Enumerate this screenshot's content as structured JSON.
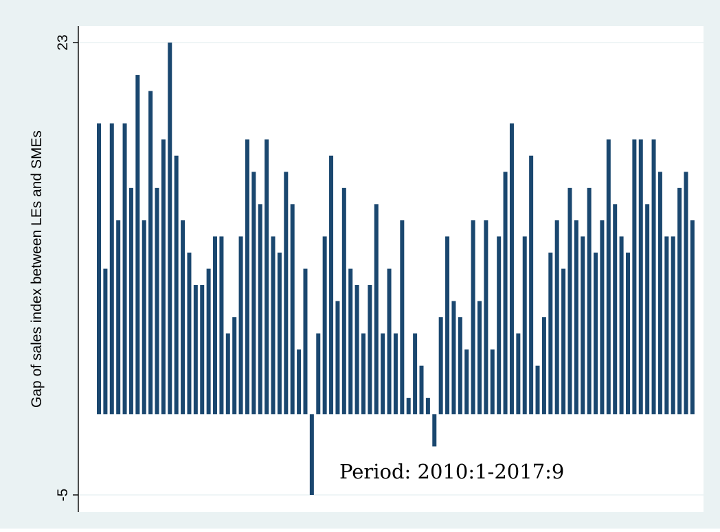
{
  "colors": {
    "outer_background": "#eaf2f3",
    "plot_background": "#ffffff",
    "bar": "#1a476f",
    "axis": "#000000",
    "gridline": "#eaf2f3",
    "text": "#000000"
  },
  "chart_data": {
    "type": "bar",
    "ylabel": "Gap of sales index between LEs and SMEs",
    "xlabel": "",
    "annotation": "Period: 2010:1-2017:9",
    "ylim": [
      -5,
      23
    ],
    "yticks": [
      -5,
      23
    ],
    "baseline": 0,
    "grid": true,
    "x_tick_labels": false,
    "values": [
      18,
      9,
      18,
      12,
      18,
      14,
      21,
      12,
      20,
      14,
      17,
      23,
      16,
      12,
      10,
      8,
      8,
      9,
      11,
      11,
      5,
      6,
      11,
      17,
      15,
      13,
      17,
      11,
      10,
      15,
      13,
      4,
      9,
      -5,
      5,
      11,
      16,
      7,
      14,
      9,
      8,
      5,
      8,
      13,
      5,
      9,
      5,
      12,
      1,
      5,
      3,
      1,
      -2,
      6,
      11,
      7,
      6,
      4,
      12,
      7,
      12,
      4,
      11,
      15,
      18,
      5,
      11,
      16,
      3,
      6,
      10,
      12,
      9,
      14,
      12,
      11,
      14,
      10,
      12,
      17,
      13,
      11,
      10,
      17,
      17,
      13,
      17,
      15,
      11,
      11,
      14,
      15,
      12
    ]
  }
}
